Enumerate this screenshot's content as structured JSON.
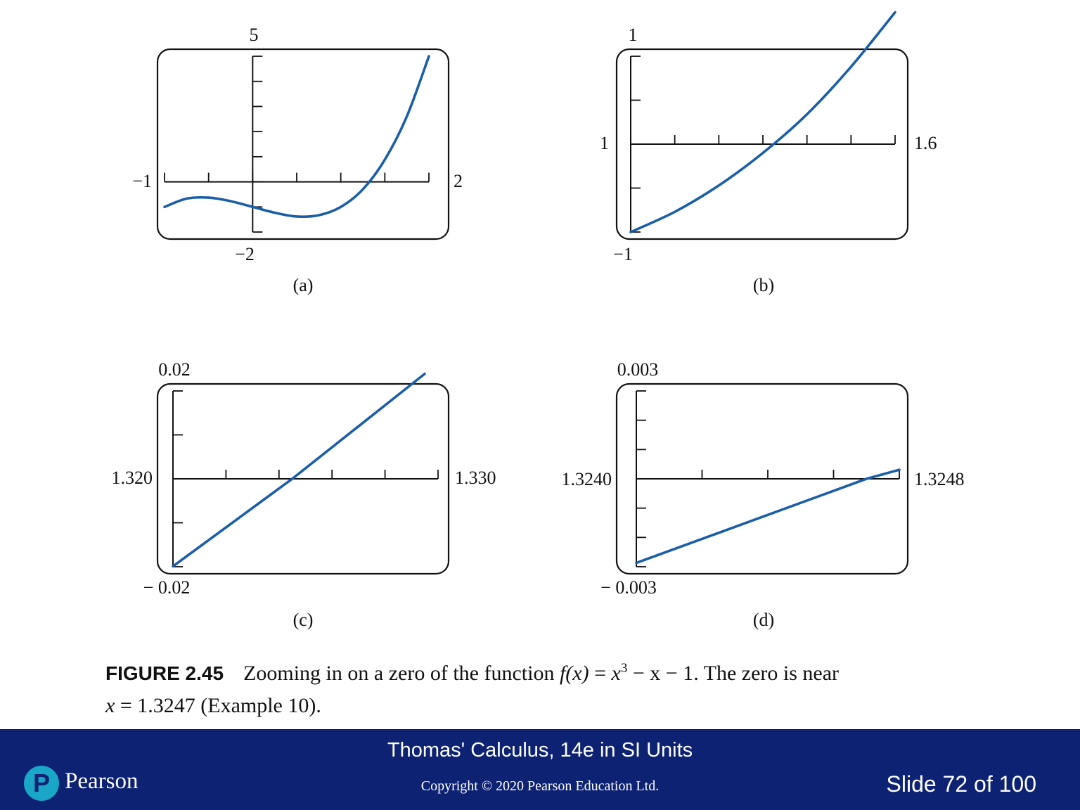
{
  "chart_data": [
    {
      "type": "line",
      "panel": "(a)",
      "function": "x^3 - x - 1",
      "xlim": [
        -1,
        2
      ],
      "ylim": [
        -2,
        5
      ],
      "xmin_label": "−1",
      "xmax_label": "2",
      "ymax_label": "5",
      "ymin_label": "−2",
      "xticks": [
        -1,
        -0.5,
        0,
        0.5,
        1,
        1.5,
        2
      ],
      "yticks": [
        -2,
        -1,
        0,
        1,
        2,
        3,
        4,
        5
      ],
      "yaxis_at": 0,
      "x": [
        -1,
        -0.75,
        -0.5,
        -0.25,
        0,
        0.25,
        0.5,
        0.75,
        1,
        1.25,
        1.5,
        1.75,
        2
      ],
      "y": [
        -1,
        -0.67,
        -0.63,
        -0.77,
        -1,
        -1.23,
        -1.38,
        -1.33,
        -1,
        -0.3,
        0.88,
        2.61,
        5
      ]
    },
    {
      "type": "line",
      "panel": "(b)",
      "function": "x^3 - x - 1",
      "xlim": [
        1,
        1.6
      ],
      "ylim": [
        -1,
        1
      ],
      "xmin_label": "1",
      "xmax_label": "1.6",
      "ymax_label": "1",
      "ymin_label": "−1",
      "xticks": [
        1,
        1.1,
        1.2,
        1.3,
        1.4,
        1.5,
        1.6
      ],
      "yticks": [
        -1,
        -0.5,
        0,
        0.5,
        1
      ],
      "yaxis_at": 1,
      "x": [
        1,
        1.1,
        1.2,
        1.3,
        1.4,
        1.5,
        1.6
      ],
      "y": [
        -1,
        -0.77,
        -0.47,
        -0.1,
        0.34,
        0.88,
        1.5
      ]
    },
    {
      "type": "line",
      "panel": "(c)",
      "function": "x^3 - x - 1",
      "xlim": [
        1.32,
        1.33
      ],
      "ylim": [
        -0.02,
        0.02
      ],
      "xmin_label": "1.320",
      "xmax_label": "1.330",
      "ymax_label": "0.02",
      "ymin_label": "− 0.02",
      "xticks": [
        1.32,
        1.322,
        1.324,
        1.326,
        1.328,
        1.33
      ],
      "yticks": [
        -0.02,
        -0.01,
        0,
        0.01,
        0.02
      ],
      "yaxis_at": 1.32,
      "x": [
        1.32,
        1.3245,
        1.3295
      ],
      "y": [
        -0.0199,
        0.0,
        0.0239
      ]
    },
    {
      "type": "line",
      "panel": "(d)",
      "function": "x^3 - x - 1",
      "xlim": [
        1.324,
        1.3248
      ],
      "ylim": [
        -0.003,
        0.003
      ],
      "xmin_label": "1.3240",
      "xmax_label": "1.3248",
      "ymax_label": "0.003",
      "ymin_label": "− 0.003",
      "xticks": [
        1.324,
        1.3242,
        1.3244,
        1.3246,
        1.3248
      ],
      "yticks": [
        -0.003,
        -0.002,
        -0.001,
        0,
        0.001,
        0.002,
        0.003
      ],
      "yaxis_at": 1.324,
      "x": [
        1.324,
        1.3247,
        1.3248
      ],
      "y": [
        -0.00287,
        0.0,
        0.00031
      ]
    }
  ],
  "caption": {
    "figure_label": "FIGURE 2.45",
    "text_before": "Zooming in on a zero of the function ",
    "func_lhs": "f(x)",
    "eq1": " = ",
    "func_x": "x",
    "func_exp": "3",
    "func_rest": " − x − 1",
    "text_after": ". The zero is near",
    "line2_var": "x",
    "line2_rest": " = 1.3247 (Example 10)."
  },
  "footer": {
    "title": "Thomas' Calculus, 14e in SI Units",
    "copyright": "Copyright © 2020 Pearson Education Ltd.",
    "slide": "Slide 72 of 100",
    "brand_letter": "P",
    "brand": "Pearson"
  },
  "colors": {
    "curve": "#1a5ea8",
    "footer_bg": "#0d2273",
    "logo": "#1aa6c7"
  }
}
